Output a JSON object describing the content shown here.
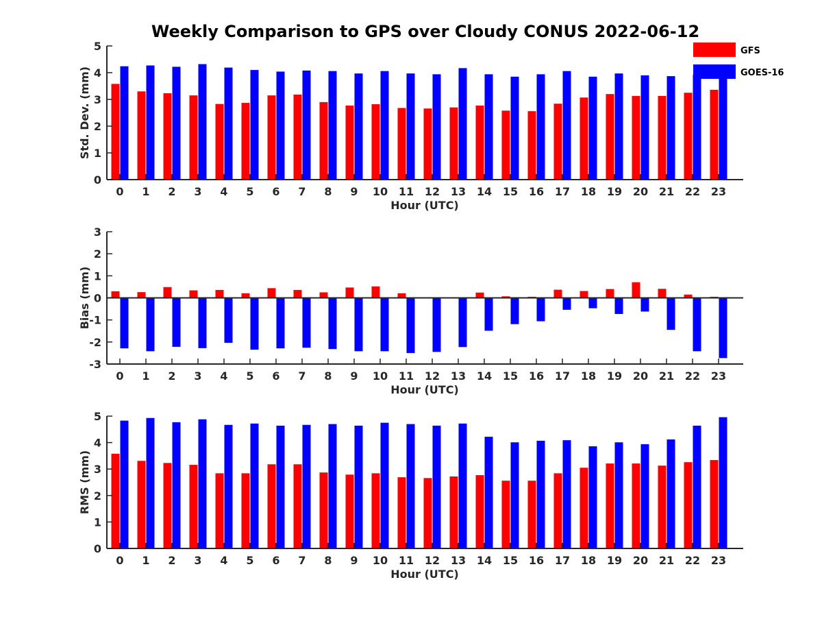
{
  "title": "Weekly Comparison to GPS over Cloudy CONUS 2022-06-12",
  "legend": [
    {
      "name": "GFS",
      "color": "#ff0000"
    },
    {
      "name": "GOES-16",
      "color": "#0000ff"
    }
  ],
  "chart_data": [
    {
      "type": "bar",
      "ylabel": "Std. Dev. (mm)",
      "xlabel": "Hour (UTC)",
      "ylim": [
        0,
        5
      ],
      "yticks": [
        0,
        1,
        2,
        3,
        4,
        5
      ],
      "categories": [
        "0",
        "1",
        "2",
        "3",
        "4",
        "5",
        "6",
        "7",
        "8",
        "9",
        "10",
        "11",
        "12",
        "13",
        "14",
        "15",
        "16",
        "17",
        "18",
        "19",
        "20",
        "21",
        "22",
        "23"
      ],
      "series": [
        {
          "name": "GFS",
          "values": [
            3.58,
            3.3,
            3.23,
            3.15,
            2.83,
            2.87,
            3.15,
            3.18,
            2.9,
            2.77,
            2.82,
            2.68,
            2.66,
            2.7,
            2.77,
            2.58,
            2.56,
            2.84,
            3.07,
            3.2,
            3.13,
            3.13,
            3.25,
            3.36
          ]
        },
        {
          "name": "GOES-16",
          "values": [
            4.24,
            4.27,
            4.22,
            4.32,
            4.19,
            4.1,
            4.04,
            4.08,
            4.06,
            3.97,
            4.06,
            3.97,
            3.94,
            4.17,
            3.94,
            3.85,
            3.94,
            4.06,
            3.85,
            3.97,
            3.9,
            3.87,
            3.92,
            3.9
          ]
        }
      ]
    },
    {
      "type": "bar",
      "ylabel": "Bias (mm)",
      "xlabel": "Hour (UTC)",
      "ylim": [
        -3,
        3
      ],
      "yticks": [
        -3,
        -2,
        -1,
        0,
        1,
        2,
        3
      ],
      "categories": [
        "0",
        "1",
        "2",
        "3",
        "4",
        "5",
        "6",
        "7",
        "8",
        "9",
        "10",
        "11",
        "12",
        "13",
        "14",
        "15",
        "16",
        "17",
        "18",
        "19",
        "20",
        "21",
        "22",
        "23"
      ],
      "series": [
        {
          "name": "GFS",
          "values": [
            0.3,
            0.26,
            0.49,
            0.34,
            0.36,
            0.21,
            0.44,
            0.36,
            0.25,
            0.47,
            0.52,
            0.21,
            -0.02,
            0.0,
            0.24,
            0.07,
            0.05,
            0.37,
            0.31,
            0.4,
            0.71,
            0.41,
            0.15,
            0.05
          ]
        },
        {
          "name": "GOES-16",
          "values": [
            -2.29,
            -2.42,
            -2.22,
            -2.28,
            -2.04,
            -2.35,
            -2.29,
            -2.26,
            -2.32,
            -2.42,
            -2.42,
            -2.5,
            -2.45,
            -2.23,
            -1.49,
            -1.19,
            -1.06,
            -0.54,
            -0.47,
            -0.73,
            -0.62,
            -1.45,
            -2.42,
            -2.73
          ]
        }
      ]
    },
    {
      "type": "bar",
      "ylabel": "RMS (mm)",
      "xlabel": "Hour (UTC)",
      "ylim": [
        0,
        5
      ],
      "yticks": [
        0,
        1,
        2,
        3,
        4,
        5
      ],
      "categories": [
        "0",
        "1",
        "2",
        "3",
        "4",
        "5",
        "6",
        "7",
        "8",
        "9",
        "10",
        "11",
        "12",
        "13",
        "14",
        "15",
        "16",
        "17",
        "18",
        "19",
        "20",
        "21",
        "22",
        "23"
      ],
      "series": [
        {
          "name": "GFS",
          "values": [
            3.58,
            3.31,
            3.23,
            3.16,
            2.84,
            2.84,
            3.18,
            3.18,
            2.87,
            2.79,
            2.84,
            2.69,
            2.66,
            2.72,
            2.77,
            2.56,
            2.56,
            2.84,
            3.05,
            3.21,
            3.21,
            3.13,
            3.26,
            3.34
          ]
        },
        {
          "name": "GOES-16",
          "values": [
            4.83,
            4.93,
            4.77,
            4.88,
            4.67,
            4.72,
            4.64,
            4.67,
            4.7,
            4.64,
            4.75,
            4.7,
            4.64,
            4.72,
            4.22,
            4.01,
            4.07,
            4.09,
            3.86,
            4.01,
            3.94,
            4.12,
            4.64,
            4.96
          ]
        }
      ]
    }
  ]
}
